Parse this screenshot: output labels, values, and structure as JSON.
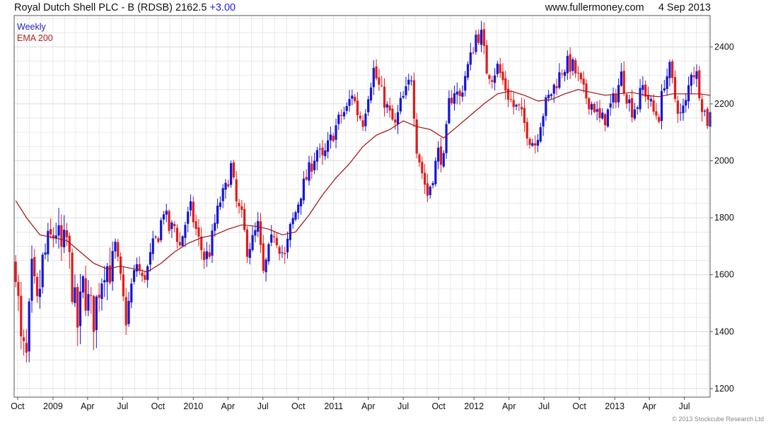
{
  "header": {
    "title": "Royal Dutch Shell PLC - B (RDSB) 2162.5",
    "change": "+3.00",
    "site": "www.fullermoney.com",
    "date": "4 Sep 2013"
  },
  "credit": "© 2013 Stockcube Research Ltd",
  "colors": {
    "up": "#1515d8",
    "down": "#e41a1a",
    "ema": "#a01010",
    "grid": "#dcdcdc",
    "legend_weekly": "#2020c0",
    "legend_ema": "#b02020"
  },
  "chart_data": {
    "type": "candlestick",
    "title": "Royal Dutch Shell PLC - B (RDSB)",
    "legend": [
      "Weekly",
      "EMA 200"
    ],
    "legend_position": "top-left",
    "ylim": [
      1170,
      2510
    ],
    "yticks": [
      1200,
      1400,
      1600,
      1800,
      2000,
      2200,
      2400
    ],
    "y_axis_side": "right",
    "grid": true,
    "xticks": [
      {
        "date": "2008-10-01",
        "label": "Oct"
      },
      {
        "date": "2009-01-01",
        "label": "2009"
      },
      {
        "date": "2009-04-01",
        "label": "Apr"
      },
      {
        "date": "2009-07-01",
        "label": "Jul"
      },
      {
        "date": "2009-10-01",
        "label": "Oct"
      },
      {
        "date": "2010-01-01",
        "label": "2010"
      },
      {
        "date": "2010-04-01",
        "label": "Apr"
      },
      {
        "date": "2010-07-01",
        "label": "Jul"
      },
      {
        "date": "2010-10-01",
        "label": "Oct"
      },
      {
        "date": "2011-01-01",
        "label": "2011"
      },
      {
        "date": "2011-04-01",
        "label": "Apr"
      },
      {
        "date": "2011-07-01",
        "label": "Jul"
      },
      {
        "date": "2011-10-01",
        "label": "Oct"
      },
      {
        "date": "2012-01-01",
        "label": "2012"
      },
      {
        "date": "2012-04-01",
        "label": "Apr"
      },
      {
        "date": "2012-07-01",
        "label": "Jul"
      },
      {
        "date": "2012-10-01",
        "label": "Oct"
      },
      {
        "date": "2013-01-01",
        "label": "2013"
      },
      {
        "date": "2013-04-01",
        "label": "Apr"
      },
      {
        "date": "2013-07-01",
        "label": "Jul"
      }
    ],
    "x_range": [
      "2008-09-22",
      "2013-09-06"
    ],
    "close_path": [
      [
        "2008-09-26",
        1640
      ],
      [
        "2008-10-10",
        1350
      ],
      [
        "2008-10-24",
        1300
      ],
      [
        "2008-11-07",
        1600
      ],
      [
        "2008-11-21",
        1480
      ],
      [
        "2008-12-05",
        1640
      ],
      [
        "2008-12-19",
        1700
      ],
      [
        "2009-01-09",
        1760
      ],
      [
        "2009-01-23",
        1680
      ],
      [
        "2009-02-06",
        1720
      ],
      [
        "2009-02-20",
        1560
      ],
      [
        "2009-03-06",
        1420
      ],
      [
        "2009-03-20",
        1560
      ],
      [
        "2009-04-03",
        1500
      ],
      [
        "2009-04-17",
        1450
      ],
      [
        "2009-05-01",
        1560
      ],
      [
        "2009-05-15",
        1640
      ],
      [
        "2009-05-29",
        1620
      ],
      [
        "2009-06-12",
        1700
      ],
      [
        "2009-06-26",
        1580
      ],
      [
        "2009-07-10",
        1440
      ],
      [
        "2009-07-24",
        1560
      ],
      [
        "2009-08-07",
        1640
      ],
      [
        "2009-08-21",
        1580
      ],
      [
        "2009-09-04",
        1620
      ],
      [
        "2009-09-18",
        1700
      ],
      [
        "2009-10-02",
        1740
      ],
      [
        "2009-10-16",
        1830
      ],
      [
        "2009-10-30",
        1760
      ],
      [
        "2009-11-13",
        1770
      ],
      [
        "2009-11-27",
        1700
      ],
      [
        "2009-12-11",
        1780
      ],
      [
        "2009-12-25",
        1830
      ],
      [
        "2010-01-15",
        1720
      ],
      [
        "2010-01-29",
        1660
      ],
      [
        "2010-02-12",
        1680
      ],
      [
        "2010-02-26",
        1780
      ],
      [
        "2010-03-12",
        1860
      ],
      [
        "2010-03-26",
        1900
      ],
      [
        "2010-04-09",
        1980
      ],
      [
        "2010-04-23",
        1850
      ],
      [
        "2010-05-07",
        1800
      ],
      [
        "2010-05-21",
        1690
      ],
      [
        "2010-06-04",
        1720
      ],
      [
        "2010-06-18",
        1770
      ],
      [
        "2010-07-02",
        1600
      ],
      [
        "2010-07-16",
        1680
      ],
      [
        "2010-07-30",
        1750
      ],
      [
        "2010-08-13",
        1700
      ],
      [
        "2010-08-27",
        1660
      ],
      [
        "2010-09-10",
        1760
      ],
      [
        "2010-09-24",
        1820
      ],
      [
        "2010-10-08",
        1890
      ],
      [
        "2010-10-22",
        1940
      ],
      [
        "2010-11-05",
        1990
      ],
      [
        "2010-11-19",
        2040
      ],
      [
        "2010-12-03",
        2000
      ],
      [
        "2010-12-17",
        2050
      ],
      [
        "2011-01-07",
        2120
      ],
      [
        "2011-01-21",
        2160
      ],
      [
        "2011-02-04",
        2180
      ],
      [
        "2011-02-18",
        2240
      ],
      [
        "2011-03-04",
        2170
      ],
      [
        "2011-03-18",
        2140
      ],
      [
        "2011-04-01",
        2240
      ],
      [
        "2011-04-15",
        2320
      ],
      [
        "2011-04-29",
        2260
      ],
      [
        "2011-05-13",
        2210
      ],
      [
        "2011-05-27",
        2160
      ],
      [
        "2011-06-10",
        2120
      ],
      [
        "2011-06-24",
        2200
      ],
      [
        "2011-07-08",
        2240
      ],
      [
        "2011-07-22",
        2300
      ],
      [
        "2011-08-05",
        2050
      ],
      [
        "2011-08-19",
        1960
      ],
      [
        "2011-09-02",
        1880
      ],
      [
        "2011-09-16",
        1950
      ],
      [
        "2011-09-30",
        2030
      ],
      [
        "2011-10-14",
        2000
      ],
      [
        "2011-10-28",
        2200
      ],
      [
        "2011-11-11",
        2250
      ],
      [
        "2011-11-25",
        2220
      ],
      [
        "2011-12-09",
        2300
      ],
      [
        "2011-12-23",
        2360
      ],
      [
        "2012-01-06",
        2440
      ],
      [
        "2012-01-20",
        2440
      ],
      [
        "2012-02-03",
        2320
      ],
      [
        "2012-02-17",
        2300
      ],
      [
        "2012-03-02",
        2330
      ],
      [
        "2012-03-16",
        2280
      ],
      [
        "2012-03-30",
        2230
      ],
      [
        "2012-04-13",
        2190
      ],
      [
        "2012-04-27",
        2180
      ],
      [
        "2012-05-11",
        2130
      ],
      [
        "2012-05-25",
        2080
      ],
      [
        "2012-06-08",
        2060
      ],
      [
        "2012-06-22",
        2140
      ],
      [
        "2012-07-06",
        2200
      ],
      [
        "2012-07-20",
        2240
      ],
      [
        "2012-08-03",
        2280
      ],
      [
        "2012-08-17",
        2320
      ],
      [
        "2012-08-31",
        2340
      ],
      [
        "2012-09-14",
        2330
      ],
      [
        "2012-09-28",
        2290
      ],
      [
        "2012-10-12",
        2240
      ],
      [
        "2012-10-26",
        2210
      ],
      [
        "2012-11-09",
        2190
      ],
      [
        "2012-11-23",
        2140
      ],
      [
        "2012-12-07",
        2150
      ],
      [
        "2012-12-21",
        2190
      ],
      [
        "2013-01-04",
        2230
      ],
      [
        "2013-01-18",
        2300
      ],
      [
        "2013-02-01",
        2230
      ],
      [
        "2013-02-15",
        2180
      ],
      [
        "2013-03-01",
        2200
      ],
      [
        "2013-03-15",
        2260
      ],
      [
        "2013-03-29",
        2220
      ],
      [
        "2013-04-12",
        2170
      ],
      [
        "2013-04-26",
        2160
      ],
      [
        "2013-05-10",
        2280
      ],
      [
        "2013-05-24",
        2320
      ],
      [
        "2013-06-07",
        2220
      ],
      [
        "2013-06-21",
        2160
      ],
      [
        "2013-07-05",
        2200
      ],
      [
        "2013-07-19",
        2320
      ],
      [
        "2013-08-02",
        2300
      ],
      [
        "2013-08-16",
        2200
      ],
      [
        "2013-08-30",
        2140
      ],
      [
        "2013-09-06",
        2162.5
      ]
    ],
    "ema_path": [
      [
        "2008-09-26",
        1860
      ],
      [
        "2008-10-24",
        1800
      ],
      [
        "2008-11-28",
        1740
      ],
      [
        "2009-01-02",
        1730
      ],
      [
        "2009-02-06",
        1720
      ],
      [
        "2009-03-13",
        1680
      ],
      [
        "2009-04-17",
        1640
      ],
      [
        "2009-05-22",
        1620
      ],
      [
        "2009-06-26",
        1630
      ],
      [
        "2009-07-31",
        1620
      ],
      [
        "2009-09-04",
        1610
      ],
      [
        "2009-10-09",
        1640
      ],
      [
        "2009-11-13",
        1680
      ],
      [
        "2009-12-18",
        1710
      ],
      [
        "2010-01-22",
        1730
      ],
      [
        "2010-02-26",
        1740
      ],
      [
        "2010-04-02",
        1760
      ],
      [
        "2010-05-07",
        1775
      ],
      [
        "2010-06-11",
        1770
      ],
      [
        "2010-07-16",
        1760
      ],
      [
        "2010-08-20",
        1740
      ],
      [
        "2010-09-24",
        1750
      ],
      [
        "2010-10-29",
        1810
      ],
      [
        "2010-12-03",
        1880
      ],
      [
        "2011-01-07",
        1940
      ],
      [
        "2011-02-11",
        1990
      ],
      [
        "2011-03-18",
        2050
      ],
      [
        "2011-04-22",
        2090
      ],
      [
        "2011-05-27",
        2110
      ],
      [
        "2011-07-01",
        2140
      ],
      [
        "2011-08-05",
        2120
      ],
      [
        "2011-09-09",
        2110
      ],
      [
        "2011-10-14",
        2080
      ],
      [
        "2011-11-18",
        2120
      ],
      [
        "2011-12-23",
        2160
      ],
      [
        "2012-01-27",
        2200
      ],
      [
        "2012-03-02",
        2235
      ],
      [
        "2012-04-06",
        2245
      ],
      [
        "2012-05-11",
        2230
      ],
      [
        "2012-06-15",
        2210
      ],
      [
        "2012-07-20",
        2215
      ],
      [
        "2012-08-24",
        2235
      ],
      [
        "2012-09-28",
        2250
      ],
      [
        "2012-11-02",
        2240
      ],
      [
        "2012-12-07",
        2230
      ],
      [
        "2013-01-11",
        2235
      ],
      [
        "2013-02-15",
        2240
      ],
      [
        "2013-03-22",
        2230
      ],
      [
        "2013-04-26",
        2225
      ],
      [
        "2013-05-31",
        2235
      ],
      [
        "2013-07-05",
        2235
      ],
      [
        "2013-08-09",
        2235
      ],
      [
        "2013-09-06",
        2230
      ]
    ],
    "volatility_note": "weekly candles derived from close path"
  }
}
